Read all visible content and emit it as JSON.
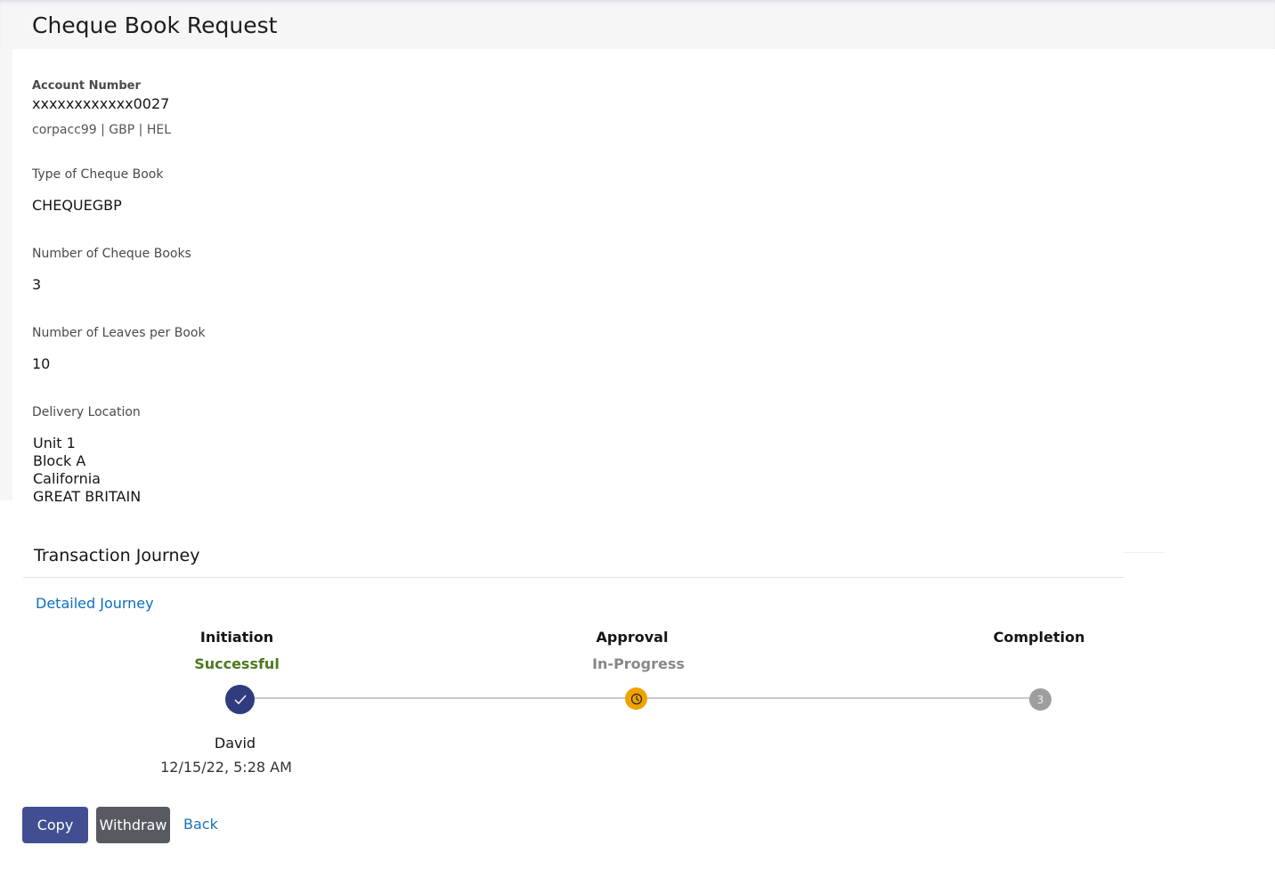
{
  "header": {
    "title": "Cheque Book Request"
  },
  "details": {
    "account_number_label": "Account Number",
    "account_number": "xxxxxxxxxxxx0027",
    "account_sub": "corpacc99 | GBP | HEL",
    "type_label": "Type of Cheque Book",
    "type_value": "CHEQUEGBP",
    "books_label": "Number of Cheque Books",
    "books_value": "3",
    "leaves_label": "Number of Leaves per Book",
    "leaves_value": "10",
    "delivery_label": "Delivery Location",
    "delivery_lines": [
      "Unit 1",
      "Block A",
      "California",
      "GREAT BRITAIN"
    ]
  },
  "journey": {
    "title": "Transaction Journey",
    "detailed_link": "Detailed Journey",
    "stages": [
      {
        "name": "Initiation",
        "status": "Successful",
        "user": "David",
        "time": "12/15/22, 5:28 AM",
        "icon": "check-icon"
      },
      {
        "name": "Approval",
        "status": "In-Progress",
        "icon": "clock-icon"
      },
      {
        "name": "Completion",
        "step": "3"
      }
    ],
    "colors": {
      "success": "#4c7a1e",
      "progress": "#888888",
      "done": "#2f3d7e",
      "pending": "#f0a300",
      "future": "#9e9e9e"
    }
  },
  "actions": {
    "copy": "Copy",
    "withdraw": "Withdraw",
    "back": "Back"
  }
}
